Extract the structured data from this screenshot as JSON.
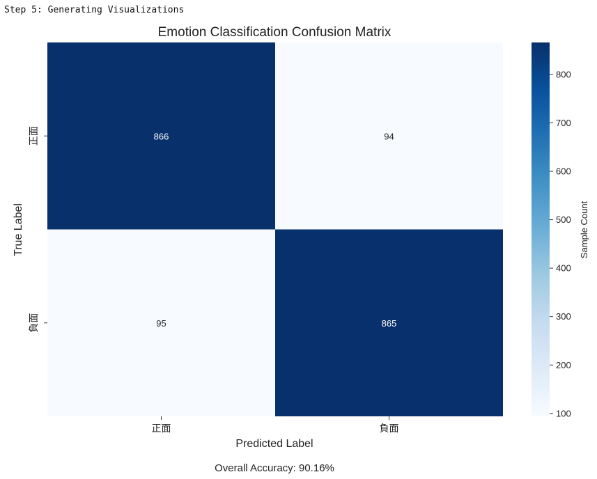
{
  "header": {
    "step_text": "Step 5: Generating Visualizations"
  },
  "chart_data": {
    "type": "heatmap",
    "title": "Emotion Classification Confusion Matrix",
    "xlabel": "Predicted Label",
    "ylabel": "True Label",
    "x_categories": [
      "正面",
      "負面"
    ],
    "y_categories": [
      "正面",
      "負面"
    ],
    "matrix": [
      [
        866,
        94
      ],
      [
        95,
        865
      ]
    ],
    "colorbar": {
      "label": "Sample Count",
      "min": 94,
      "max": 866,
      "ticks": [
        100,
        200,
        300,
        400,
        500,
        600,
        700,
        800
      ],
      "colormap": "Blues",
      "low_color": "#f7fbff",
      "high_color": "#08306b"
    },
    "footer": "Overall Accuracy: 90.16%"
  }
}
